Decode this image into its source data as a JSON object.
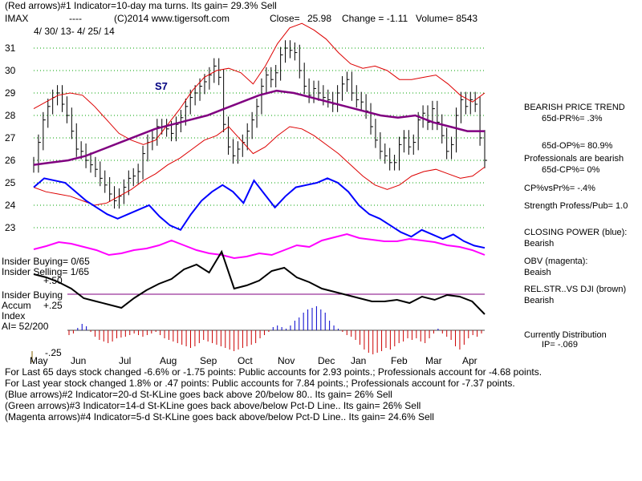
{
  "header": {
    "line1": "(Red arrows)#1 Indicator=10-day ma turns. Its gain= 29.3% Sell",
    "ticker": "IMAX",
    "dashes": "----",
    "copyright": "(C)2014 www.tigersoft.com",
    "close_label": "Close=",
    "close_value": "25.98",
    "change": "Change = -1.11",
    "volume": "Volume= 8543",
    "date_range": "4/ 30/ 13- 4/ 25/ 14"
  },
  "panels": {
    "s7_label": "S7",
    "insider_buying": "Insider Buying= 0/65",
    "insider_selling": "Insider Selling= 1/65",
    "accum_title_1": "Insider Buying",
    "accum_title_2": "Accum",
    "accum_title_3": "Index",
    "ai": "AI= 52/200",
    "accum_plus50": "+.50",
    "accum_plus25": "+.25",
    "accum_minus25": "-.25"
  },
  "right_panel": {
    "trend": "BEARISH PRICE TREND",
    "pr": "65d-PR%= .3%",
    "op": "65d-OP%= 80.9%",
    "professionals": "Professionals are bearish",
    "cp": "65d-CP%= 0%",
    "cpvspr": "CP%vsPr%= -.4%",
    "strength": "Strength Profess/Pub= 1.0",
    "closing_power_label": "CLOSING POWER (blue):",
    "closing_power_value": "Bearish",
    "obv_label": "OBV (magenta):",
    "obv_value": "Beaish",
    "relstr_label": "REL.STR..VS DJI (brown)",
    "relstr_value": "Bearish",
    "distribution": "Currently Distribution",
    "ip": "IP= -.069"
  },
  "footer": {
    "line1": "For Last 65 days stock changed -6.6% or -1.75 points:  Public accounts for  2.93 points.;  Professionals account for -4.68 points.",
    "line2": "For Last year stock changed  1.8% or  .47 points:  Public accounts for  7.84 points.;  Professionals account for -7.37 points.",
    "line3": "(Blue arrows)#2 Indicator=20-d St-KLine goes back above 20/below 80.. Its gain= 26% Sell",
    "line4": "(Green arrows)#3 Indicator=14-d St-KLine goes back above/below Pct-D Line.. Its gain= 26% Sell",
    "line5": "(Magenta arrows)#4 Indicator=5-d St-KLine goes back above/below Pct-D Line.. Its gain= 24.6% Sell"
  },
  "colors": {
    "price_bars": "#000000",
    "bands": "#dd0000",
    "ma": "#800080",
    "closing_power": "#0000ff",
    "obv": "#ff00ff",
    "relstr": "#000000",
    "grid": "#00a000",
    "accum_pos": "#0000cc",
    "accum_neg": "#cc0000"
  },
  "chart_data": {
    "type": "line",
    "y_ticks": [
      31,
      30,
      29,
      28,
      27,
      26,
      25,
      24,
      23
    ],
    "ylim": [
      22.5,
      31.5
    ],
    "x_months": [
      "May",
      "Jun",
      "Jul",
      "Aug",
      "Sep",
      "Oct",
      "Nov",
      "Dec",
      "Jan",
      "Feb",
      "Mar",
      "Apr"
    ],
    "price_close": [
      25.8,
      26.8,
      27.8,
      28.4,
      28.8,
      29.0,
      28.5,
      28.0,
      27.3,
      26.5,
      26.4,
      26.0,
      25.8,
      25.6,
      25.2,
      24.9,
      24.5,
      24.2,
      24.4,
      24.8,
      25.2,
      25.3,
      25.5,
      26.3,
      26.8,
      27.0,
      27.5,
      27.5,
      27.4,
      27.2,
      27.6,
      27.9,
      28.4,
      28.8,
      29.0,
      29.3,
      29.5,
      29.8,
      30.2,
      29.7,
      27.6,
      26.6,
      26.2,
      26.5,
      26.8,
      27.3,
      27.8,
      28.4,
      29.3,
      29.8,
      29.6,
      29.9,
      30.7,
      31.0,
      30.9,
      30.8,
      30.0,
      29.3,
      28.9,
      29.2,
      29.0,
      28.8,
      28.7,
      28.5,
      29.0,
      29.4,
      29.6,
      29.0,
      28.7,
      28.6,
      28.2,
      27.5,
      26.9,
      26.4,
      26.2,
      25.9,
      25.9,
      26.7,
      27.0,
      26.6,
      26.8,
      27.8,
      28.1,
      27.7,
      28.3,
      27.7,
      27.1,
      26.4,
      26.7,
      28.0,
      28.7,
      28.4,
      28.7,
      28.5,
      27.0,
      26.0
    ],
    "band_upper": [
      28.3,
      28.6,
      28.9,
      29.0,
      28.9,
      28.4,
      27.8,
      27.2,
      26.9,
      26.7,
      26.9,
      27.6,
      28.3,
      29.1,
      29.7,
      30.0,
      30.1,
      29.9,
      29.4,
      30.2,
      31.2,
      31.9,
      32.1,
      31.8,
      31.4,
      30.8,
      30.3,
      30.1,
      30.2,
      30.0,
      29.6,
      29.6,
      29.7,
      29.8,
      29.4,
      28.9,
      28.6,
      29.0
    ],
    "band_lower": [
      24.8,
      24.6,
      24.5,
      24.4,
      24.2,
      24.0,
      24.1,
      24.4,
      24.7,
      25.1,
      25.4,
      25.8,
      26.1,
      26.5,
      26.9,
      27.1,
      27.5,
      26.9,
      26.3,
      26.6,
      27.1,
      27.5,
      27.4,
      27.1,
      26.7,
      26.3,
      25.8,
      25.3,
      24.9,
      24.7,
      24.9,
      25.3,
      25.5,
      25.6,
      25.4,
      25.2,
      25.3,
      25.7
    ],
    "ma_50": [
      25.8,
      25.9,
      26.0,
      26.2,
      26.5,
      26.8,
      27.1,
      27.4,
      27.6,
      27.8,
      28.0,
      28.3,
      28.6,
      28.9,
      29.1,
      29.0,
      28.8,
      28.6,
      28.4,
      28.2,
      28.0,
      27.9,
      28.0,
      27.7,
      27.5,
      27.3,
      27.3
    ],
    "closing_power": [
      24.8,
      25.2,
      25.1,
      25.0,
      24.6,
      24.2,
      23.9,
      23.6,
      23.4,
      23.6,
      23.8,
      24.0,
      23.5,
      23.1,
      22.9,
      23.6,
      24.2,
      24.6,
      24.9,
      24.6,
      24.1,
      25.1,
      24.5,
      23.9,
      24.4,
      24.8,
      24.9,
      25.0,
      25.2,
      25.0,
      24.6,
      24.0,
      23.6,
      23.4,
      23.1,
      22.8,
      22.6,
      22.9,
      22.7,
      22.5,
      22.7,
      22.4,
      22.2,
      22.1
    ]
  }
}
